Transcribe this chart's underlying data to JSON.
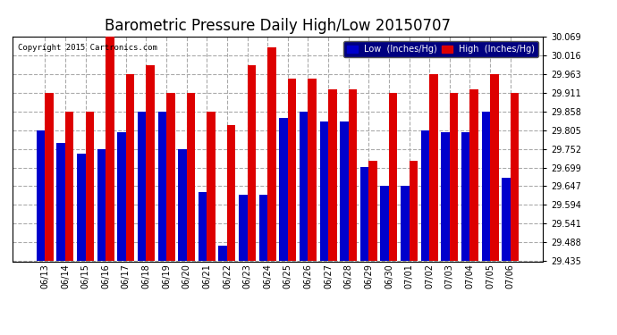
{
  "title": "Barometric Pressure Daily High/Low 20150707",
  "copyright": "Copyright 2015 Cartronics.com",
  "dates": [
    "06/13",
    "06/14",
    "06/15",
    "06/16",
    "06/17",
    "06/18",
    "06/19",
    "06/20",
    "06/21",
    "06/22",
    "06/23",
    "06/24",
    "06/25",
    "06/26",
    "06/27",
    "06/28",
    "06/29",
    "06/30",
    "07/01",
    "07/02",
    "07/03",
    "07/04",
    "07/05",
    "07/06"
  ],
  "low_values": [
    29.805,
    29.77,
    29.74,
    29.752,
    29.8,
    29.858,
    29.858,
    29.752,
    29.63,
    29.48,
    29.624,
    29.624,
    29.84,
    29.858,
    29.83,
    29.83,
    29.7,
    29.648,
    29.648,
    29.805,
    29.8,
    29.8,
    29.858,
    29.67
  ],
  "high_values": [
    29.911,
    29.858,
    29.858,
    30.069,
    29.963,
    29.988,
    29.911,
    29.911,
    29.858,
    29.82,
    29.988,
    30.04,
    29.95,
    29.95,
    29.92,
    29.92,
    29.72,
    29.911,
    29.72,
    29.963,
    29.911,
    29.92,
    29.963,
    29.911
  ],
  "ylim_min": 29.435,
  "ylim_max": 30.069,
  "yticks": [
    29.435,
    29.488,
    29.541,
    29.594,
    29.647,
    29.699,
    29.752,
    29.805,
    29.858,
    29.911,
    29.963,
    30.016,
    30.069
  ],
  "low_color": "#0000cc",
  "high_color": "#dd0000",
  "bg_color": "#ffffff",
  "grid_color": "#aaaaaa",
  "title_fontsize": 12,
  "legend_low_label": "Low  (Inches/Hg)",
  "legend_high_label": "High  (Inches/Hg)",
  "legend_bg": "#000080",
  "legend_text_color": "#ffffff"
}
